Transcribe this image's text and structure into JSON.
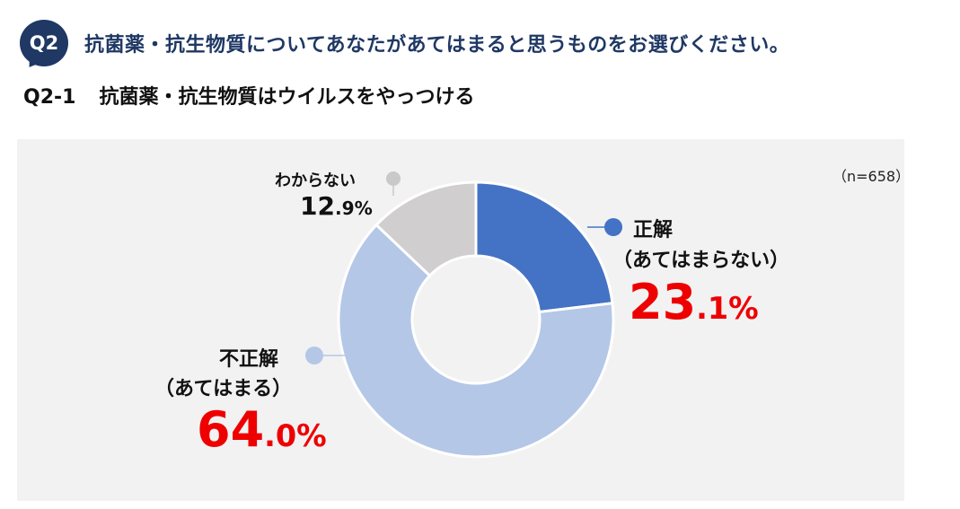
{
  "question": {
    "badge": "Q2",
    "title": "抗菌薬・抗生物質についてあなたがあてはまると思うものをお選びください。"
  },
  "subquestion": {
    "code": "Q2-1",
    "text": "抗菌薬・抗生物質はウイルスをやっつける"
  },
  "sample_size": "（n=658）",
  "chart_data": {
    "type": "pie",
    "donut": true,
    "unit": "%",
    "slices": [
      {
        "label": "正解",
        "sublabel": "（あてはまらない）",
        "value": 23.1,
        "int": "23",
        "dec": ".1",
        "color": "#4472c4"
      },
      {
        "label": "不正解",
        "sublabel": "（あてはまる）",
        "value": 64.0,
        "int": "64",
        "dec": ".0",
        "color": "#b4c7e7"
      },
      {
        "label": "わからない",
        "sublabel": "",
        "value": 12.9,
        "int": "12",
        "dec": ".9",
        "color": "#d0cece"
      }
    ]
  }
}
